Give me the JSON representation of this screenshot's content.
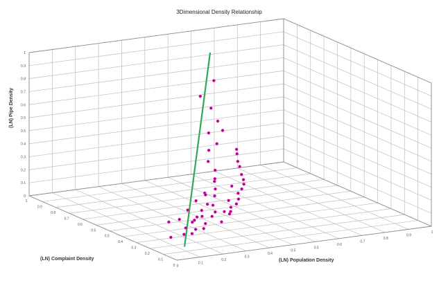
{
  "chart_data": {
    "type": "scatter",
    "title": "3Dimensional Density Relationship",
    "xlabel": "(LN) Complaint Density",
    "ylabel": "(LN) Population Density",
    "zlabel": "(LN) Pipe Density",
    "xlim": [
      0,
      1
    ],
    "ylim": [
      0,
      1
    ],
    "zlim": [
      0,
      1
    ],
    "grid": true,
    "colors": {
      "points": "#b7008f",
      "point_edge": "#ff5ad8",
      "trend_line": "#2fa85c",
      "grid": "#bdbdbd",
      "frame": "#8d8d8d"
    },
    "series": [
      {
        "type": "scatter",
        "x": [
          0.18,
          0.23,
          0.22,
          0.2,
          0.19,
          0.18,
          0.21,
          0.23,
          0.25,
          0.26,
          0.24,
          0.22,
          0.27,
          0.29,
          0.26,
          0.31,
          0.33,
          0.34,
          0.31,
          0.33,
          0.36,
          0.38,
          0.37,
          0.4,
          0.43,
          0.46,
          0.49,
          0.56,
          0.63,
          0.68,
          0.72,
          0.55,
          0.5,
          0.47,
          0.38,
          0.34,
          0.28,
          0.26,
          0.24,
          0.21,
          0.16,
          0.17,
          0.2,
          0.22,
          0.24,
          0.25,
          0.27,
          0.29,
          0.3,
          0.32,
          0.35,
          0.38,
          0.42,
          0.44
        ],
        "y": [
          0.28,
          0.32,
          0.24,
          0.19,
          0.17,
          0.21,
          0.15,
          0.11,
          0.18,
          0.25,
          0.29,
          0.34,
          0.36,
          0.31,
          0.22,
          0.19,
          0.16,
          0.24,
          0.3,
          0.34,
          0.36,
          0.33,
          0.29,
          0.38,
          0.4,
          0.39,
          0.41,
          0.45,
          0.5,
          0.54,
          0.51,
          0.48,
          0.47,
          0.43,
          0.37,
          0.31,
          0.26,
          0.23,
          0.2,
          0.26,
          0.3,
          0.31,
          0.35,
          0.37,
          0.38,
          0.4,
          0.42,
          0.43,
          0.39,
          0.44,
          0.45,
          0.46,
          0.48,
          0.49
        ],
        "z": [
          0.12,
          0.16,
          0.1,
          0.08,
          0.06,
          0.09,
          0.05,
          0.03,
          0.07,
          0.13,
          0.16,
          0.19,
          0.21,
          0.18,
          0.11,
          0.1,
          0.08,
          0.14,
          0.18,
          0.22,
          0.25,
          0.22,
          0.18,
          0.28,
          0.34,
          0.39,
          0.45,
          0.53,
          0.66,
          0.82,
          0.7,
          0.61,
          0.57,
          0.5,
          0.31,
          0.23,
          0.16,
          0.13,
          0.11,
          0.15,
          0.18,
          0.19,
          0.22,
          0.24,
          0.27,
          0.29,
          0.31,
          0.33,
          0.29,
          0.35,
          0.39,
          0.41,
          0.44,
          0.46
        ]
      },
      {
        "type": "line",
        "x": [
          0.12,
          0.74
        ],
        "y": [
          0.1,
          0.56
        ],
        "z": [
          0.02,
          0.98
        ]
      }
    ]
  }
}
